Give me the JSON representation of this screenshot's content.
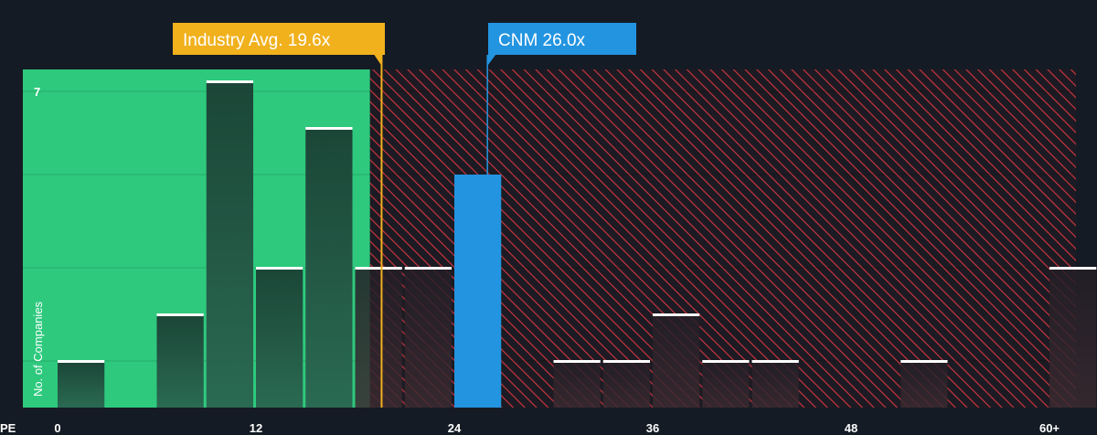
{
  "chart_data": {
    "type": "bar",
    "xlabel": "PE",
    "ylabel": "No. of Companies",
    "x_ticks": [
      0,
      12,
      24,
      36,
      48,
      "60+"
    ],
    "y_ticks": [
      7
    ],
    "xlim": [
      -2,
      61.5
    ],
    "ylim": [
      0,
      7.2
    ],
    "bin_width": 3,
    "bins": [
      {
        "x": 0,
        "value": 1
      },
      {
        "x": 3,
        "value": 0
      },
      {
        "x": 6,
        "value": 2
      },
      {
        "x": 9,
        "value": 7
      },
      {
        "x": 12,
        "value": 3
      },
      {
        "x": 15,
        "value": 6
      },
      {
        "x": 18,
        "value": 3
      },
      {
        "x": 21,
        "value": 3
      },
      {
        "x": 24,
        "value": 5,
        "highlight": true
      },
      {
        "x": 27,
        "value": 0
      },
      {
        "x": 30,
        "value": 1
      },
      {
        "x": 33,
        "value": 1
      },
      {
        "x": 36,
        "value": 2
      },
      {
        "x": 39,
        "value": 1
      },
      {
        "x": 42,
        "value": 1
      },
      {
        "x": 45,
        "value": 0
      },
      {
        "x": 48,
        "value": 0
      },
      {
        "x": 51,
        "value": 1
      },
      {
        "x": 54,
        "value": 0
      },
      {
        "x": 57,
        "value": 0
      },
      {
        "x": 60,
        "value": 3
      }
    ],
    "fair_value_boundary": 18.9,
    "industry_avg": {
      "label": "Industry Avg. 19.6x",
      "value": 19.6,
      "color": "#f0b11d"
    },
    "company": {
      "label": "CNM 26.0x",
      "value": 26.0,
      "color": "#2394e0"
    },
    "colors": {
      "background": "#151b24",
      "green_zone": "#2ec97d",
      "red_hatch": "#c8353f",
      "bar_dark": "#1f4a3b",
      "highlight_bar": "#2394e0"
    }
  }
}
